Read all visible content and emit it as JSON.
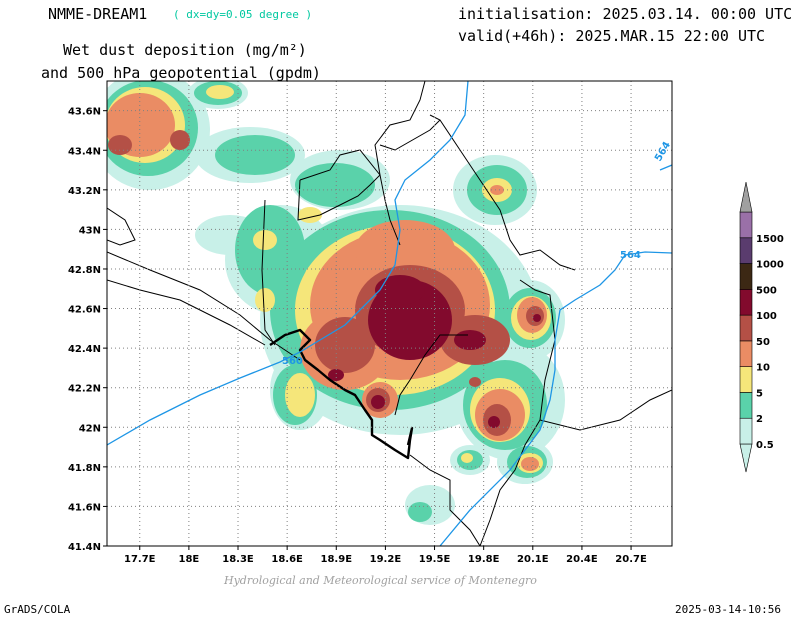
{
  "header": {
    "model": "NMME-DREAM1",
    "resolution": "( dx=dy=0.05 degree )",
    "title_line1": "Wet dust deposition (mg/m²)",
    "title_line2": "and 500 hPa geopotential (gpdm)",
    "init": "initialisation: 2025.03.14. 00:00 UTC",
    "valid": "valid(+46h): 2025.MAR.15 22:00 UTC"
  },
  "footer": {
    "left": "GrADS/COLA",
    "right": "2025-03-14-10:56",
    "credit": "Hydrological and Meteorological service of Montenegro"
  },
  "map": {
    "lon_range": [
      17.5,
      20.95
    ],
    "lat_range": [
      41.4,
      43.75
    ],
    "lon_ticks": [
      "17.7E",
      "18E",
      "18.3E",
      "18.6E",
      "18.9E",
      "19.2E",
      "19.5E",
      "19.8E",
      "20.1E",
      "20.4E",
      "20.7E"
    ],
    "lat_ticks": [
      "41.4N",
      "41.6N",
      "41.8N",
      "42N",
      "42.2N",
      "42.4N",
      "42.6N",
      "42.8N",
      "43N",
      "43.2N",
      "43.4N",
      "43.6N"
    ],
    "contour_labels": [
      "560",
      "564",
      "564"
    ],
    "contour_color": "#1e96e6"
  },
  "colorbar": {
    "levels": [
      "0.5",
      "2",
      "5",
      "10",
      "50",
      "100",
      "500",
      "1000",
      "1500"
    ],
    "colors": [
      "#c8f0e8",
      "#5ad2aa",
      "#f5e67a",
      "#ea8c64",
      "#b45046",
      "#820a2d",
      "#3c2814",
      "#5a3c6e",
      "#9a70a8",
      "#a0a0a0"
    ]
  }
}
